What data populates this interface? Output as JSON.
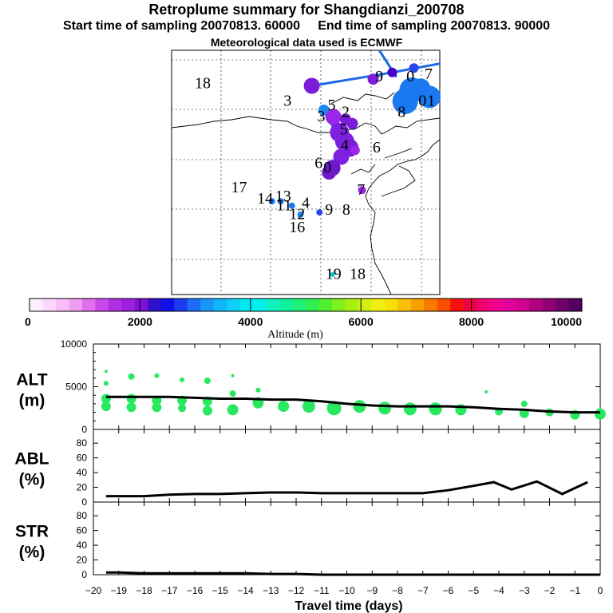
{
  "header": {
    "title": "Retroplume summary for Shangdianzi_200708",
    "start_label": "Start time of sampling",
    "start_value": "20070813. 60000",
    "end_label": "End time of sampling",
    "end_value": "20070813. 90000",
    "met_label": "Meteorological data used is ECMWF"
  },
  "map": {
    "station_labels": [
      {
        "text": "18",
        "lon": 0.36,
        "lat": 0.93
      },
      {
        "text": "3",
        "lon": 1.34,
        "lat": 0.85
      },
      {
        "text": "5",
        "lon": 1.85,
        "lat": 0.83
      },
      {
        "text": "3",
        "lon": 1.73,
        "lat": 0.78
      },
      {
        "text": "2",
        "lon": 2.01,
        "lat": 0.8
      },
      {
        "text": "9",
        "lon": 2.4,
        "lat": 0.96
      },
      {
        "text": "0",
        "lon": 2.76,
        "lat": 0.96
      },
      {
        "text": "7",
        "lon": 2.97,
        "lat": 0.97
      },
      {
        "text": "8",
        "lon": 2.66,
        "lat": 0.8
      },
      {
        "text": "0",
        "lon": 2.9,
        "lat": 0.85
      },
      {
        "text": "1",
        "lon": 3.0,
        "lat": 0.85
      },
      {
        "text": "5",
        "lon": 1.99,
        "lat": 0.72
      },
      {
        "text": "4",
        "lon": 2.0,
        "lat": 0.65
      },
      {
        "text": "6",
        "lon": 2.37,
        "lat": 0.64
      },
      {
        "text": "6",
        "lon": 1.7,
        "lat": 0.57
      },
      {
        "text": "0",
        "lon": 1.8,
        "lat": 0.55
      },
      {
        "text": "7",
        "lon": 2.19,
        "lat": 0.45
      },
      {
        "text": "17",
        "lon": 0.78,
        "lat": 0.46
      },
      {
        "text": "14",
        "lon": 1.08,
        "lat": 0.41
      },
      {
        "text": "13",
        "lon": 1.29,
        "lat": 0.42
      },
      {
        "text": "11",
        "lon": 1.3,
        "lat": 0.38
      },
      {
        "text": "4",
        "lon": 1.55,
        "lat": 0.39
      },
      {
        "text": "12",
        "lon": 1.45,
        "lat": 0.34
      },
      {
        "text": "16",
        "lon": 1.45,
        "lat": 0.28
      },
      {
        "text": "9",
        "lon": 1.82,
        "lat": 0.36
      },
      {
        "text": "8",
        "lon": 2.02,
        "lat": 0.36
      },
      {
        "text": "19",
        "lon": 1.87,
        "lat": 0.07
      },
      {
        "text": "18",
        "lon": 2.15,
        "lat": 0.07
      }
    ],
    "markers": [
      {
        "lon": 1.62,
        "lat": 0.94,
        "c": "#7a1cd8",
        "s": 10
      },
      {
        "lon": 2.33,
        "lat": 0.97,
        "c": "#7a1cd8",
        "s": 7
      },
      {
        "lon": 2.55,
        "lat": 1.0,
        "c": "#4b00c8",
        "s": 6
      },
      {
        "lon": 2.8,
        "lat": 1.02,
        "c": "#2a46e8",
        "s": 6
      },
      {
        "lon": 2.7,
        "lat": 0.87,
        "c": "#1a78f0",
        "s": 16
      },
      {
        "lon": 2.78,
        "lat": 0.92,
        "c": "#1a78f0",
        "s": 16
      },
      {
        "lon": 2.98,
        "lat": 0.89,
        "c": "#1a78f0",
        "s": 14
      },
      {
        "lon": 2.88,
        "lat": 0.93,
        "c": "#1a78f0",
        "s": 12
      },
      {
        "lon": 1.76,
        "lat": 0.83,
        "c": "#1a8cf0",
        "s": 7
      },
      {
        "lon": 1.87,
        "lat": 0.8,
        "c": "#9a28e8",
        "s": 10
      },
      {
        "lon": 2.01,
        "lat": 0.79,
        "c": "#7a1cd8",
        "s": 7
      },
      {
        "lon": 2.09,
        "lat": 0.77,
        "c": "#7a1cd8",
        "s": 7
      },
      {
        "lon": 1.94,
        "lat": 0.73,
        "c": "#8020e0",
        "s": 12
      },
      {
        "lon": 2.0,
        "lat": 0.69,
        "c": "#8020e0",
        "s": 12
      },
      {
        "lon": 2.06,
        "lat": 0.66,
        "c": "#7a1cd8",
        "s": 11
      },
      {
        "lon": 1.96,
        "lat": 0.62,
        "c": "#8020e0",
        "s": 10
      },
      {
        "lon": 1.86,
        "lat": 0.57,
        "c": "#6a18c8",
        "s": 10
      },
      {
        "lon": 1.82,
        "lat": 0.55,
        "c": "#6a18c8",
        "s": 9
      },
      {
        "lon": 2.12,
        "lat": 0.65,
        "c": "#9a28e8",
        "s": 6
      },
      {
        "lon": 2.2,
        "lat": 0.47,
        "c": "#9a28e8",
        "s": 5
      },
      {
        "lon": 1.16,
        "lat": 0.42,
        "c": "#1a78f0",
        "s": 4
      },
      {
        "lon": 1.26,
        "lat": 0.42,
        "c": "#1a78f0",
        "s": 4
      },
      {
        "lon": 1.39,
        "lat": 0.4,
        "c": "#1a78f0",
        "s": 4
      },
      {
        "lon": 1.49,
        "lat": 0.36,
        "c": "#1a8cf0",
        "s": 4
      },
      {
        "lon": 1.71,
        "lat": 0.37,
        "c": "#2a46e8",
        "s": 4
      },
      {
        "lon": 1.86,
        "lat": 0.09,
        "c": "#00c8d0",
        "s": 3
      }
    ],
    "track": {
      "lon": [
        1.62,
        2.55,
        3.1
      ],
      "lat": [
        0.94,
        1.0,
        1.04
      ]
    },
    "track2": {
      "lon": [
        2.4,
        2.6
      ],
      "lat": [
        1.1,
        0.98
      ]
    },
    "track3": {
      "lon": [
        1.84,
        1.95
      ],
      "lat": [
        0.78,
        0.65
      ]
    },
    "track_color": "#1a6ae8",
    "track_color2": "#1a6ae8"
  },
  "colorbar": {
    "colors": [
      "#ffeeff",
      "#fcd8fc",
      "#f8bcf8",
      "#f09cf0",
      "#e070ec",
      "#c848e8",
      "#b030e0",
      "#9c20dc",
      "#8010d4",
      "#3010c8",
      "#1010e8",
      "#1c3cf0",
      "#1c6cf8",
      "#1896f8",
      "#10b6f8",
      "#10d0f8",
      "#00e8f0",
      "#00f0f0",
      "#10f0c0",
      "#10f09c",
      "#20f078",
      "#30f050",
      "#50f030",
      "#80f020",
      "#a8f010",
      "#d0f010",
      "#f0f010",
      "#f8e000",
      "#f8c000",
      "#f8a000",
      "#f87800",
      "#f85000",
      "#f81010",
      "#f00040",
      "#f00070",
      "#f0008c",
      "#e0009c",
      "#d00090",
      "#b00080",
      "#900070",
      "#70006c",
      "#500060"
    ],
    "labels": [
      "0",
      "2000",
      "4000",
      "6000",
      "8000",
      "10000"
    ],
    "title": "Altitude  (m)"
  },
  "chart_data": [
    {
      "type": "line",
      "panel": "ALT",
      "ylabel": "ALT\n(m)",
      "ylim": [
        0,
        10000
      ],
      "yticks": [
        10000,
        5000,
        0
      ],
      "x": [
        -19.5,
        -19,
        -18,
        -17,
        -16,
        -15,
        -14,
        -13,
        -12,
        -11,
        -10,
        -9,
        -8,
        -7,
        -6,
        -5,
        -4.5,
        -4,
        -3,
        -2.5,
        -2,
        -1,
        0
      ],
      "values": [
        3800,
        3800,
        3800,
        3800,
        3700,
        3600,
        3600,
        3500,
        3500,
        3300,
        3000,
        2800,
        2700,
        2700,
        2700,
        2600,
        2500,
        2400,
        2300,
        2200,
        2100,
        2000,
        2000
      ],
      "scatter_color": "#28e860",
      "scatter": [
        {
          "x": -19.5,
          "y": 3600,
          "s": 6
        },
        {
          "x": -19.5,
          "y": 2700,
          "s": 6
        },
        {
          "x": -19.5,
          "y": 5400,
          "s": 3
        },
        {
          "x": -19.5,
          "y": 6800,
          "s": 2
        },
        {
          "x": -18.5,
          "y": 3600,
          "s": 6
        },
        {
          "x": -18.5,
          "y": 2600,
          "s": 6
        },
        {
          "x": -18.5,
          "y": 6200,
          "s": 4
        },
        {
          "x": -17.5,
          "y": 3400,
          "s": 6
        },
        {
          "x": -17.5,
          "y": 2600,
          "s": 6
        },
        {
          "x": -17.5,
          "y": 6300,
          "s": 3
        },
        {
          "x": -16.5,
          "y": 3400,
          "s": 6
        },
        {
          "x": -16.5,
          "y": 2500,
          "s": 5
        },
        {
          "x": -16.5,
          "y": 5800,
          "s": 3
        },
        {
          "x": -15.5,
          "y": 3300,
          "s": 6
        },
        {
          "x": -15.5,
          "y": 2200,
          "s": 6
        },
        {
          "x": -15.5,
          "y": 5700,
          "s": 4
        },
        {
          "x": -14.5,
          "y": 2300,
          "s": 7
        },
        {
          "x": -14.5,
          "y": 4200,
          "s": 4
        },
        {
          "x": -14.5,
          "y": 6300,
          "s": 2
        },
        {
          "x": -13.5,
          "y": 3100,
          "s": 7
        },
        {
          "x": -13.5,
          "y": 4600,
          "s": 3
        },
        {
          "x": -12.5,
          "y": 2700,
          "s": 7
        },
        {
          "x": -11.5,
          "y": 2700,
          "s": 8
        },
        {
          "x": -10.5,
          "y": 2500,
          "s": 9
        },
        {
          "x": -9.5,
          "y": 2700,
          "s": 8
        },
        {
          "x": -8.5,
          "y": 2500,
          "s": 8
        },
        {
          "x": -7.5,
          "y": 2400,
          "s": 8
        },
        {
          "x": -6.5,
          "y": 2400,
          "s": 8
        },
        {
          "x": -5.5,
          "y": 2300,
          "s": 7
        },
        {
          "x": -4.5,
          "y": 4400,
          "s": 2
        },
        {
          "x": -4.0,
          "y": 2100,
          "s": 5
        },
        {
          "x": -3.0,
          "y": 3000,
          "s": 4
        },
        {
          "x": -3.0,
          "y": 1900,
          "s": 6
        },
        {
          "x": -2.0,
          "y": 2000,
          "s": 5
        },
        {
          "x": -1.0,
          "y": 1700,
          "s": 6
        },
        {
          "x": 0.0,
          "y": 1800,
          "s": 7
        }
      ]
    },
    {
      "type": "line",
      "panel": "ABL",
      "ylabel": "ABL\n(%)",
      "ylim": [
        0,
        90
      ],
      "yticks": [
        80,
        60,
        40,
        20,
        0
      ],
      "x": [
        -19.5,
        -18,
        -17,
        -16,
        -15,
        -14,
        -13,
        -12,
        -11,
        -10,
        -9,
        -8,
        -7,
        -6,
        -5,
        -4.2,
        -3.5,
        -2.5,
        -1.5,
        -0.5
      ],
      "values": [
        8,
        8,
        10,
        11,
        11,
        12,
        13,
        13,
        12,
        12,
        12,
        12,
        12,
        16,
        22,
        27,
        17,
        28,
        11,
        27
      ]
    },
    {
      "type": "line",
      "panel": "STR",
      "ylabel": "STR\n(%)",
      "ylim": [
        0,
        90
      ],
      "yticks": [
        80,
        60,
        40,
        20,
        0
      ],
      "xlabel": "Travel time (days)",
      "xlim": [
        -20,
        0
      ],
      "xticks": [
        -20,
        -19,
        -18,
        -17,
        -16,
        -15,
        -14,
        -13,
        -12,
        -11,
        -10,
        -9,
        -8,
        -7,
        -6,
        -5,
        -4,
        -3,
        -2,
        -1,
        0
      ],
      "x": [
        -19.5,
        -19,
        -18,
        -17,
        -16,
        -15,
        -14,
        -13,
        -12,
        -11,
        -10,
        -9,
        -8,
        -7,
        -6,
        -5,
        -4,
        -3,
        -2,
        -1,
        0
      ],
      "values": [
        3,
        3,
        2,
        2,
        2,
        2,
        2,
        1,
        1,
        0,
        0,
        0,
        0,
        0,
        0,
        0,
        0,
        0,
        0,
        0,
        0
      ]
    }
  ]
}
